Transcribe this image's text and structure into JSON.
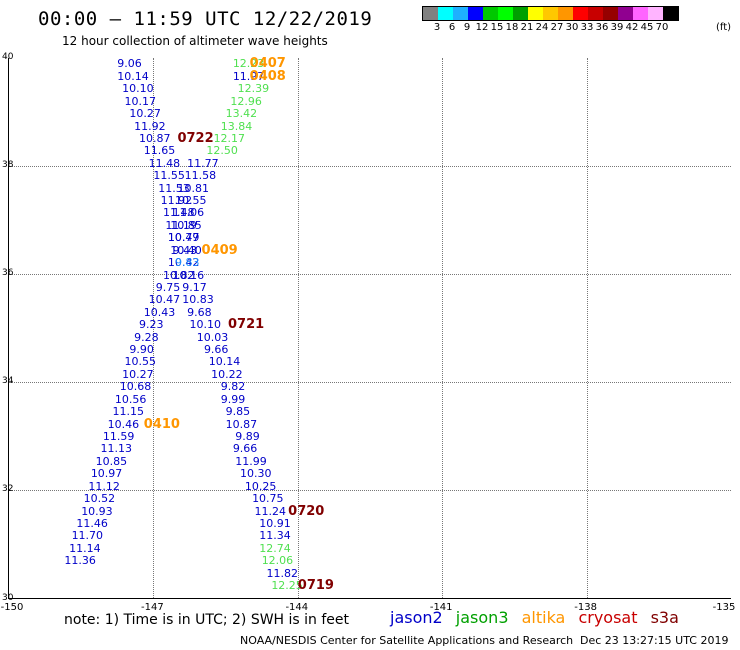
{
  "title": "00:00 – 11:59 UTC 12/22/2019",
  "subtitle": "12 hour collection of altimeter wave heights",
  "legend": {
    "colors": [
      "#808080",
      "#00ffff",
      "#1eb0ff",
      "#0000ff",
      "#00c800",
      "#00ff00",
      "#00a000",
      "#ffff00",
      "#ffc800",
      "#ff9600",
      "#ff0000",
      "#c80000",
      "#960000",
      "#900090",
      "#ff64ff",
      "#ffb4ff",
      "#000000"
    ],
    "labels": [
      "3",
      "6",
      "9",
      "12",
      "15",
      "18",
      "21",
      "24",
      "27",
      "30",
      "33",
      "36",
      "39",
      "42",
      "45",
      "70"
    ],
    "unit": "(ft)"
  },
  "map": {
    "lon_range": [
      -150,
      -135
    ],
    "lat_range": [
      30,
      40
    ],
    "x_ticks": [
      "-150",
      "-147",
      "-144",
      "-141",
      "-138",
      "-135"
    ],
    "y_ticks": [
      "40",
      "38",
      "36",
      "34",
      "32",
      "30"
    ],
    "grid": "dotted"
  },
  "colors": {
    "jason2": "#0000c8",
    "jason3": "#00a000",
    "altika": "#ff9600",
    "cryosat": "#c80000",
    "s3a": "#800000",
    "j3val": "#50e050",
    "cyan": "#1e90ff"
  },
  "track_a": [
    {
      "v": "9.06",
      "lon": -147.75,
      "lat": 39.9
    },
    {
      "v": "10.14",
      "lon": -147.75,
      "lat": 39.67
    },
    {
      "v": "10.10",
      "lon": -147.65,
      "lat": 39.44
    },
    {
      "v": "10.17",
      "lon": -147.6,
      "lat": 39.21
    },
    {
      "v": "10.27",
      "lon": -147.5,
      "lat": 38.98
    },
    {
      "v": "11.92",
      "lon": -147.4,
      "lat": 38.75
    },
    {
      "v": "10.87",
      "lon": -147.3,
      "lat": 38.52
    },
    {
      "v": "11.65",
      "lon": -147.2,
      "lat": 38.29
    },
    {
      "v": "11.48",
      "lon": -147.1,
      "lat": 38.06
    },
    {
      "v": "11.55",
      "lon": -147.0,
      "lat": 37.83
    },
    {
      "v": "11.53",
      "lon": -146.9,
      "lat": 37.6
    },
    {
      "v": "11.92",
      "lon": -146.85,
      "lat": 37.37
    },
    {
      "v": "11.48",
      "lon": -146.8,
      "lat": 37.14
    },
    {
      "v": "11.19",
      "lon": -146.75,
      "lat": 36.91
    },
    {
      "v": "10.77",
      "lon": -146.7,
      "lat": 36.68
    },
    {
      "v": "10.40",
      "lon": -146.65,
      "lat": 36.45
    },
    {
      "v": "10.42",
      "lon": -146.7,
      "lat": 36.22
    },
    {
      "v": "10.82",
      "lon": -146.8,
      "lat": 35.99
    },
    {
      "v": "9.75",
      "lon": -146.95,
      "lat": 35.76
    },
    {
      "v": "10.47",
      "lon": -147.1,
      "lat": 35.53
    },
    {
      "v": "10.43",
      "lon": -147.2,
      "lat": 35.3
    },
    {
      "v": "9.23",
      "lon": -147.3,
      "lat": 35.07
    },
    {
      "v": "9.28",
      "lon": -147.4,
      "lat": 34.84
    },
    {
      "v": "9.90",
      "lon": -147.5,
      "lat": 34.61
    },
    {
      "v": "10.55",
      "lon": -147.6,
      "lat": 34.38
    },
    {
      "v": "10.27",
      "lon": -147.65,
      "lat": 34.15
    },
    {
      "v": "10.68",
      "lon": -147.7,
      "lat": 33.92
    },
    {
      "v": "10.56",
      "lon": -147.8,
      "lat": 33.69
    },
    {
      "v": "11.15",
      "lon": -147.85,
      "lat": 33.46
    },
    {
      "v": "10.46",
      "lon": -147.95,
      "lat": 33.23
    },
    {
      "v": "11.59",
      "lon": -148.05,
      "lat": 33.0
    },
    {
      "v": "11.13",
      "lon": -148.1,
      "lat": 32.77
    },
    {
      "v": "10.85",
      "lon": -148.2,
      "lat": 32.54
    },
    {
      "v": "10.97",
      "lon": -148.3,
      "lat": 32.31
    },
    {
      "v": "11.12",
      "lon": -148.35,
      "lat": 32.08
    },
    {
      "v": "10.52",
      "lon": -148.45,
      "lat": 31.85
    },
    {
      "v": "10.93",
      "lon": -148.5,
      "lat": 31.62
    },
    {
      "v": "11.46",
      "lon": -148.6,
      "lat": 31.39
    },
    {
      "v": "11.70",
      "lon": -148.7,
      "lat": 31.16
    },
    {
      "v": "11.14",
      "lon": -148.75,
      "lat": 30.93
    },
    {
      "v": "11.36",
      "lon": -148.85,
      "lat": 30.7
    }
  ],
  "track_b": [
    {
      "v": "11.77",
      "lon": -146.3,
      "lat": 38.06
    },
    {
      "v": "11.58",
      "lon": -146.35,
      "lat": 37.83
    },
    {
      "v": "10.81",
      "lon": -146.5,
      "lat": 37.6
    },
    {
      "v": "10.55",
      "lon": -146.55,
      "lat": 37.37
    },
    {
      "v": "11.06",
      "lon": -146.6,
      "lat": 37.14
    },
    {
      "v": "10.85",
      "lon": -146.65,
      "lat": 36.91
    },
    {
      "v": "10.49",
      "lon": -146.7,
      "lat": 36.68
    },
    {
      "v": "9.43",
      "lon": -146.6,
      "lat": 36.45
    },
    {
      "v": "10.16",
      "lon": -146.6,
      "lat": 35.99
    },
    {
      "v": "9.17",
      "lon": -146.4,
      "lat": 35.76
    },
    {
      "v": "10.83",
      "lon": -146.4,
      "lat": 35.53
    },
    {
      "v": "9.68",
      "lon": -146.3,
      "lat": 35.3
    },
    {
      "v": "10.10",
      "lon": -146.25,
      "lat": 35.07
    },
    {
      "v": "10.03",
      "lon": -146.1,
      "lat": 34.84
    },
    {
      "v": "9.66",
      "lon": -145.95,
      "lat": 34.61
    },
    {
      "v": "10.14",
      "lon": -145.85,
      "lat": 34.38
    },
    {
      "v": "10.22",
      "lon": -145.8,
      "lat": 34.15
    },
    {
      "v": "9.82",
      "lon": -145.6,
      "lat": 33.92
    },
    {
      "v": "9.99",
      "lon": -145.6,
      "lat": 33.69
    },
    {
      "v": "9.85",
      "lon": -145.5,
      "lat": 33.46
    },
    {
      "v": "10.87",
      "lon": -145.5,
      "lat": 33.23
    },
    {
      "v": "9.89",
      "lon": -145.3,
      "lat": 33.0
    },
    {
      "v": "9.66",
      "lon": -145.35,
      "lat": 32.77
    },
    {
      "v": "11.99",
      "lon": -145.3,
      "lat": 32.54
    },
    {
      "v": "10.30",
      "lon": -145.2,
      "lat": 32.31
    },
    {
      "v": "10.25",
      "lon": -145.1,
      "lat": 32.08
    },
    {
      "v": "10.75",
      "lon": -144.95,
      "lat": 31.85
    },
    {
      "v": "11.24",
      "lon": -144.9,
      "lat": 31.62
    },
    {
      "v": "10.91",
      "lon": -144.8,
      "lat": 31.39
    },
    {
      "v": "11.34",
      "lon": -144.8,
      "lat": 31.16
    }
  ],
  "track_b_green": [
    {
      "v": "12.74",
      "lon": -144.8,
      "lat": 30.93
    },
    {
      "v": "12.06",
      "lon": -144.75,
      "lat": 30.7
    }
  ],
  "track_b_end": [
    {
      "v": "11.82",
      "lon": -144.65,
      "lat": 30.47
    }
  ],
  "track_b_green_end": [
    {
      "v": "12.25",
      "lon": -144.55,
      "lat": 30.24
    }
  ],
  "track_c": [
    {
      "v": "12.23",
      "lon": -145.35,
      "lat": 39.9
    },
    {
      "v": "11.97",
      "lon": -145.35,
      "lat": 39.67
    },
    {
      "v": "12.39",
      "lon": -145.25,
      "lat": 39.44
    },
    {
      "v": "12.96",
      "lon": -145.4,
      "lat": 39.21
    },
    {
      "v": "13.42",
      "lon": -145.5,
      "lat": 38.98
    },
    {
      "v": "13.84",
      "lon": -145.6,
      "lat": 38.75
    },
    {
      "v": "12.17",
      "lon": -145.75,
      "lat": 38.52
    },
    {
      "v": "12.50",
      "lon": -145.9,
      "lat": 38.29
    }
  ],
  "track_c_dark": [
    1
  ],
  "cyan_pt": {
    "v": "9.83",
    "lon": -146.55,
    "lat": 36.22
  },
  "times": [
    {
      "t": "0407",
      "lon": -145.0,
      "lat": 39.9,
      "sat": "altika"
    },
    {
      "t": "0408",
      "lon": -145.0,
      "lat": 39.67,
      "sat": "altika"
    },
    {
      "t": "0722",
      "lon": -146.5,
      "lat": 38.52,
      "sat": "s3a"
    },
    {
      "t": "0409",
      "lon": -146.0,
      "lat": 36.45,
      "sat": "altika"
    },
    {
      "t": "0721",
      "lon": -145.45,
      "lat": 35.07,
      "sat": "s3a"
    },
    {
      "t": "0410",
      "lon": -147.2,
      "lat": 33.23,
      "sat": "altika"
    },
    {
      "t": "0720",
      "lon": -144.2,
      "lat": 31.62,
      "sat": "s3a"
    },
    {
      "t": "0719",
      "lon": -144.0,
      "lat": 30.24,
      "sat": "s3a"
    }
  ],
  "footer": {
    "note": "note: 1) Time is in UTC; 2) SWH is in feet",
    "sats": [
      "jason2",
      "jason3",
      "altika",
      "cryosat",
      "s3a"
    ],
    "credit": "NOAA/NESDIS Center for Satellite Applications and Research",
    "stamp": "Dec 23 13:27:15 UTC 2019"
  }
}
